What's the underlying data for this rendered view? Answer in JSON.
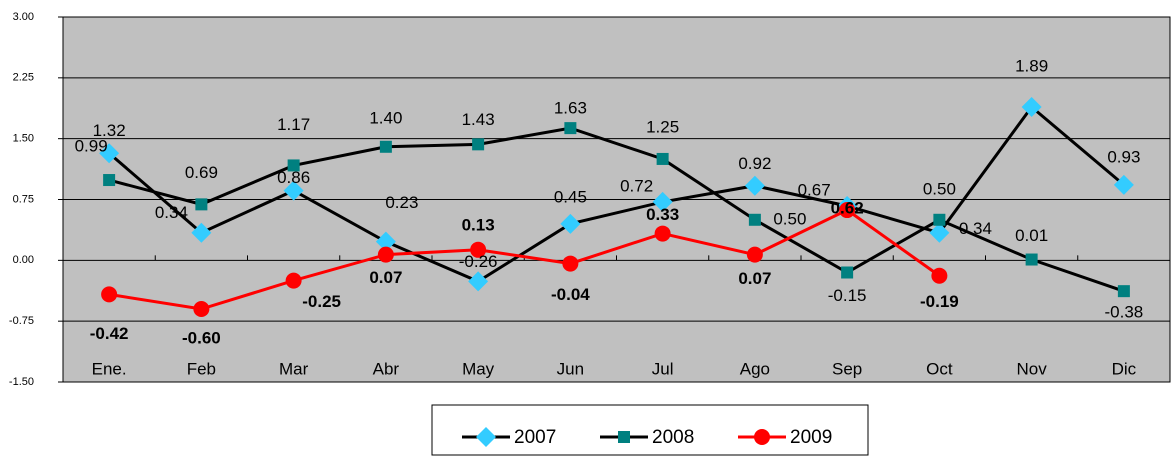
{
  "chart_data": {
    "type": "line",
    "categories": [
      "Ene.",
      "Feb",
      "Mar",
      "Abr",
      "May",
      "Jun",
      "Jul",
      "Ago",
      "Sep",
      "Oct",
      "Nov",
      "Dic"
    ],
    "series": [
      {
        "name": "2007",
        "color": "#33ccff",
        "line_color": "#000000",
        "marker": "diamond",
        "label_weight": "normal",
        "values": [
          1.32,
          0.34,
          0.86,
          0.23,
          -0.26,
          0.45,
          0.72,
          0.92,
          0.67,
          0.34,
          1.89,
          0.93
        ],
        "value_labels": [
          "1.32",
          "0.34",
          "0.86",
          "0.23",
          "-0.26",
          "0.45",
          "0.72",
          "0.92",
          "0.67",
          "0.34",
          "1.89",
          "0.93"
        ]
      },
      {
        "name": "2008",
        "color": "#008080",
        "line_color": "#000000",
        "marker": "square",
        "label_weight": "normal",
        "values": [
          0.99,
          0.69,
          1.17,
          1.4,
          1.43,
          1.63,
          1.25,
          0.5,
          -0.15,
          0.5,
          0.01,
          -0.38
        ],
        "value_labels": [
          "0.99",
          "0.69",
          "1.17",
          "1.40",
          "1.43",
          "1.63",
          "1.25",
          "0.50",
          "-0.15",
          "0.50",
          "0.01",
          "-0.38"
        ]
      },
      {
        "name": "2009",
        "color": "#ff0000",
        "line_color": "#ff0000",
        "marker": "circle",
        "label_weight": "bold",
        "values": [
          -0.42,
          -0.6,
          -0.25,
          0.07,
          0.13,
          -0.04,
          0.33,
          0.07,
          0.62,
          -0.19,
          null,
          null
        ],
        "value_labels": [
          "-0.42",
          "-0.60",
          "-0.25",
          "0.07",
          "0.13",
          "-0.04",
          "0.33",
          "0.07",
          "0.62",
          "-0.19",
          null,
          null
        ]
      }
    ],
    "ylim": [
      -1.5,
      3
    ],
    "yticks": [
      {
        "value": -1.5,
        "label": "-1.50"
      },
      -0.75,
      {
        "value": 0,
        "label": "0.00"
      },
      0.75,
      {
        "value": 1.5,
        "label": "1.50"
      },
      2.25,
      {
        "value": 3,
        "label": "3.00"
      }
    ],
    "grid": true,
    "legend": "bottom"
  }
}
